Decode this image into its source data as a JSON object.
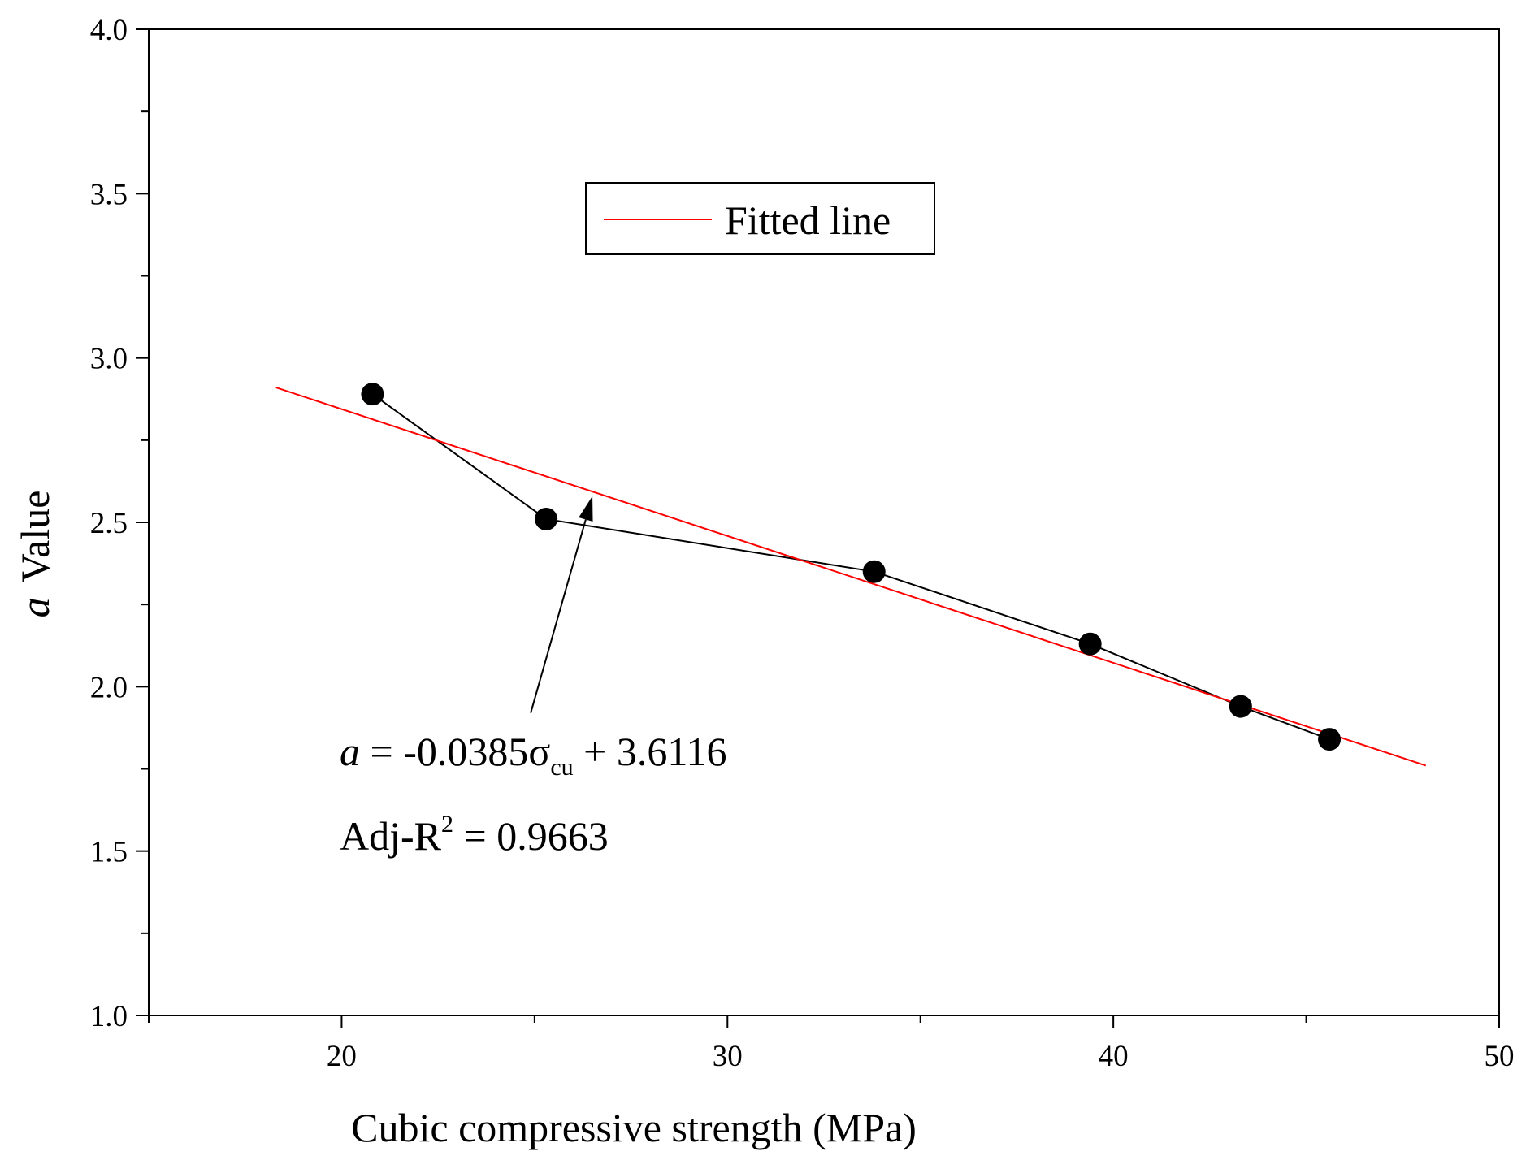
{
  "chart_data": {
    "type": "scatter",
    "title": "",
    "xlabel": "Cubic compressive strength (MPa)",
    "ylabel_italic": "a",
    "ylabel_rest": "Value",
    "xlim": [
      15,
      50
    ],
    "ylim": [
      1.0,
      4.0
    ],
    "x_major_ticks": [
      20,
      30,
      40,
      50
    ],
    "x_minor_ticks": [
      15,
      25,
      35,
      45
    ],
    "x_tick_labels": [
      "20",
      "30",
      "40",
      "50"
    ],
    "y_major_ticks": [
      1.0,
      1.5,
      2.0,
      2.5,
      3.0,
      3.5,
      4.0
    ],
    "y_minor_ticks": [
      1.25,
      1.75,
      2.25,
      2.75,
      3.25,
      3.75
    ],
    "y_tick_labels": [
      "1.0",
      "1.5",
      "2.0",
      "2.5",
      "3.0",
      "3.5",
      "4.0"
    ],
    "grid": false,
    "series": [
      {
        "name": "a value",
        "kind": "line+markers",
        "color": "#000000",
        "x": [
          20.8,
          25.3,
          33.8,
          39.4,
          43.3,
          45.6
        ],
        "y": [
          2.89,
          2.51,
          2.35,
          2.13,
          1.94,
          1.84
        ]
      },
      {
        "name": "Fitted line",
        "kind": "line",
        "color": "#ff0000",
        "x": [
          18.3,
          48.1
        ],
        "y": [
          2.91,
          1.76
        ]
      }
    ],
    "legend": {
      "position": "top-center",
      "entries": [
        {
          "label": "Fitted line",
          "color": "#ff0000"
        }
      ]
    },
    "annotation": {
      "eq_a": "a",
      "eq_body": " = -0.0385σ",
      "eq_sub": "cu",
      "eq_tail": " + 3.6116",
      "r2_prefix": "Adj-R",
      "r2_sup": "2",
      "r2_value": " = 0.9663",
      "arrow_from": {
        "x": 24.9,
        "y": 1.92
      },
      "arrow_to": {
        "x": 26.5,
        "y": 2.58
      }
    }
  }
}
